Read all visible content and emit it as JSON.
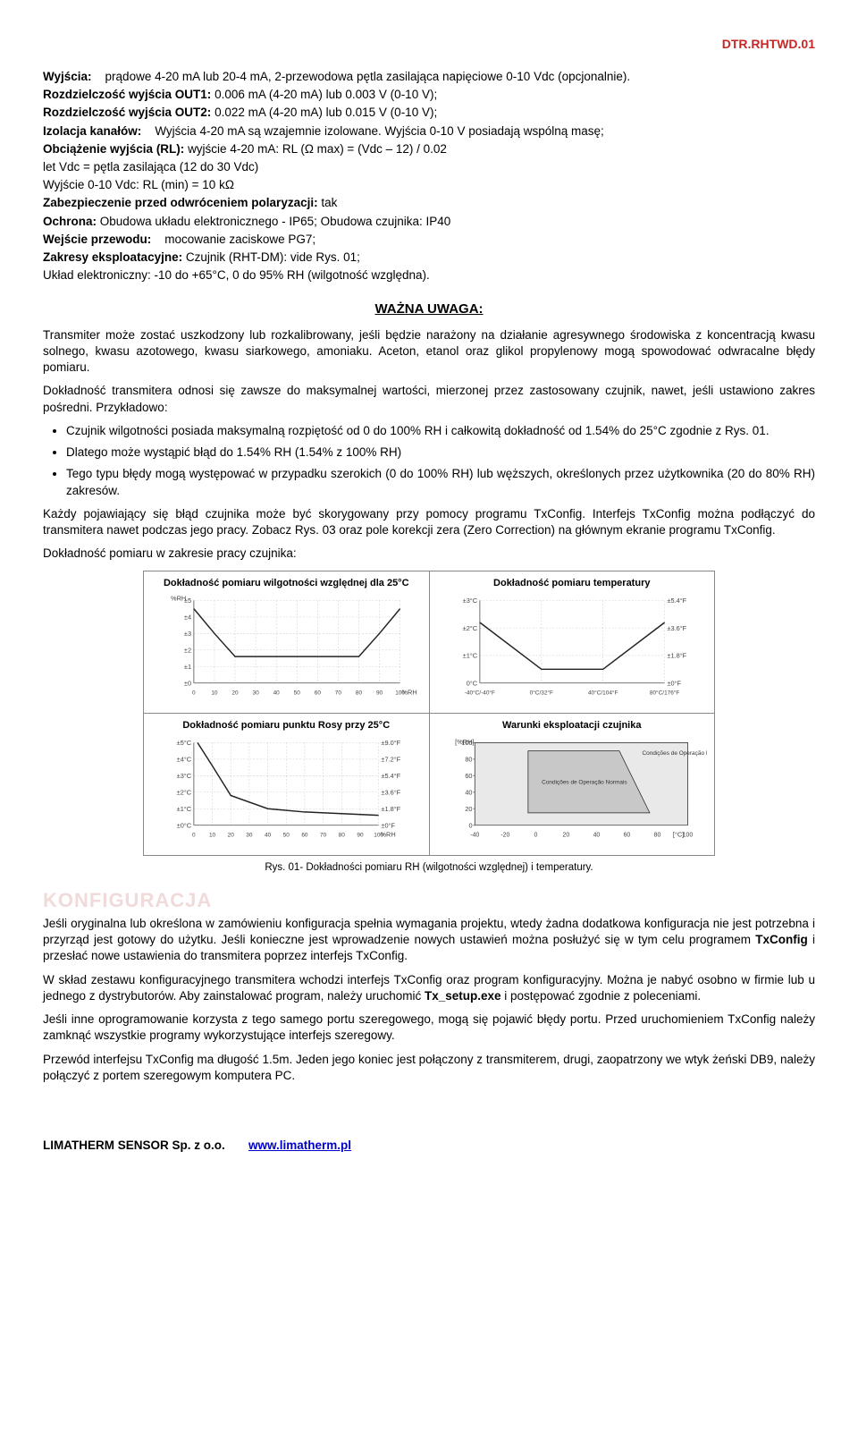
{
  "doc_code": "DTR.RHTWD.01",
  "specs": {
    "wyjscia_label": "Wyjścia:",
    "wyjscia_text": "prądowe 4-20 mA lub 20-4 mA, 2-przewodowa pętla zasilająca napięciowe 0-10 Vdc (opcjonalnie).",
    "rozdz_out1_label": "Rozdzielczość wyjścia OUT1:",
    "rozdz_out1_text": "0.006 mA (4-20 mA) lub 0.003 V (0-10 V);",
    "rozdz_out2_label": "Rozdzielczość wyjścia OUT2:",
    "rozdz_out2_text": "0.022 mA (4-20 mA) lub 0.015 V (0-10 V);",
    "izolacja_label": "Izolacja kanałów:",
    "izolacja_text": "Wyjścia 4-20 mA są wzajemnie izolowane. Wyjścia 0-10 V posiadają wspólną masę;",
    "obciazenie_label": "Obciążenie wyjścia (RL):",
    "obciazenie_text": "wyjście 4-20 mA:  RL (Ω max) = (Vdc – 12) / 0.02",
    "obc_line2": "let Vdc = pętla zasilająca (12 do 30 Vdc)",
    "obc_line3": "Wyjście 0-10 Vdc: RL (min) = 10 kΩ",
    "zabezp_label": "Zabezpieczenie przed odwróceniem polaryzacji:",
    "zabezp_text": "tak",
    "ochrona_label": "Ochrona:",
    "ochrona_text": "Obudowa układu elektronicznego -  IP65; Obudowa czujnika: IP40",
    "wejscie_label": "Wejście przewodu:",
    "wejscie_text": "mocowanie zaciskowe PG7;",
    "zakresy_label": "Zakresy eksploatacyjne:",
    "zakresy_text": "Czujnik (RHT-DM): vide Rys. 01;",
    "zakresy_line2": "Układ elektroniczny: -10 do +65°C, 0 do 95% RH (wilgotność względna)."
  },
  "important_note": {
    "title": "WAŻNA UWAGA:",
    "p1": "Transmiter może zostać uszkodzony lub rozkalibrowany, jeśli będzie narażony na działanie agresywnego środowiska z koncentracją kwasu solnego, kwasu azotowego, kwasu siarkowego, amoniaku. Aceton, etanol oraz glikol propylenowy mogą spowodować odwracalne błędy pomiaru.",
    "p2": "Dokładność transmitera odnosi się zawsze do maksymalnej wartości, mierzonej przez zastosowany czujnik, nawet, jeśli ustawiono zakres pośredni. Przykładowo:",
    "b1": "Czujnik wilgotności posiada maksymalną rozpiętość od 0 do 100% RH i całkowitą dokładność od 1.54% do 25°C zgodnie z Rys. 01.",
    "b2": "Dlatego może wystąpić błąd do 1.54% RH (1.54% z 100% RH)",
    "b3": "Tego typu błędy mogą występować w przypadku szerokich (0 do 100% RH) lub węższych, określonych przez użytkownika  (20 do 80% RH) zakresów.",
    "p3": "Każdy pojawiający się błąd czujnika może być skorygowany przy pomocy programu TxConfig. Interfejs TxConfig można podłączyć do transmitera nawet podczas jego pracy. Zobacz Rys. 03 oraz pole korekcji zera (Zero Correction) na głównym ekranie programu TxConfig.",
    "p4": "Dokładność pomiaru w zakresie pracy czujnika:"
  },
  "figures": {
    "t1": "Dokładność pomiaru wilgotności względnej dla 25°C",
    "t2": "Dokładność pomiaru temperatury",
    "t3": "Dokładność pomiaru punktu Rosy przy 25°C",
    "t4": "Warunki eksploatacji czujnika",
    "caption": "Rys. 01- Dokładności pomiaru RH (wilgotności względnej) i temperatury.",
    "chart1": {
      "ylabel": "%RH",
      "xlabel": "%RH",
      "yticks": [
        "±5",
        "±4",
        "±3",
        "±2",
        "±1",
        "±0"
      ],
      "xticks": [
        "0",
        "10",
        "20",
        "30",
        "40",
        "50",
        "60",
        "70",
        "80",
        "90",
        "100"
      ],
      "points": [
        [
          0,
          4.5
        ],
        [
          10,
          3
        ],
        [
          20,
          1.6
        ],
        [
          80,
          1.6
        ],
        [
          90,
          3
        ],
        [
          100,
          4.5
        ]
      ],
      "ylim": [
        0,
        5
      ],
      "xlim": [
        0,
        100
      ],
      "line_color": "#222",
      "grid_color": "#cfcfcf",
      "bg": "#ffffff"
    },
    "chart2": {
      "yticks_l": [
        "±3°C",
        "±2°C",
        "±1°C",
        "0°C"
      ],
      "yticks_r": [
        "±5.4°F",
        "±3.6°F",
        "±1.8°F",
        "±0°F"
      ],
      "xticks": [
        "-40°C/-40°F",
        "0°C/32°F",
        "40°C/104°F",
        "80°C/176°F"
      ],
      "points": [
        [
          -40,
          2.2
        ],
        [
          0,
          0.5
        ],
        [
          40,
          0.5
        ],
        [
          80,
          2.2
        ]
      ],
      "ylim": [
        0,
        3
      ],
      "xlim": [
        -40,
        80
      ],
      "line_color": "#222",
      "grid_color": "#cfcfcf",
      "bg": "#ffffff"
    },
    "chart3": {
      "yticks_l": [
        "±5°C",
        "±4°C",
        "±3°C",
        "±2°C",
        "±1°C",
        "±0°C"
      ],
      "yticks_r": [
        "±9.0°F",
        "±7.2°F",
        "±5.4°F",
        "±3.6°F",
        "±1.8°F",
        "±0°F"
      ],
      "xticks": [
        "0",
        "10",
        "20",
        "30",
        "40",
        "50",
        "60",
        "70",
        "80",
        "90",
        "100"
      ],
      "xlabel": "%RH",
      "points": [
        [
          2,
          5
        ],
        [
          10,
          3.6
        ],
        [
          20,
          1.8
        ],
        [
          40,
          1.0
        ],
        [
          60,
          0.8
        ],
        [
          80,
          0.7
        ],
        [
          100,
          0.6
        ]
      ],
      "ylim": [
        0,
        5
      ],
      "xlim": [
        0,
        100
      ],
      "line_color": "#222",
      "grid_color": "#cfcfcf",
      "bg": "#ffffff"
    },
    "chart4": {
      "ylabel": "[%RH]",
      "xlabel": "[°C]",
      "yticks": [
        "100",
        "80",
        "60",
        "40",
        "20",
        "0"
      ],
      "xticks": [
        "-40",
        "-20",
        "0",
        "20",
        "40",
        "60",
        "80",
        "100"
      ],
      "region_max_label": "Condições de Operação Máxima",
      "region_norm_label": "Condições de Operação Normais",
      "xlim": [
        -40,
        100
      ],
      "ylim": [
        0,
        100
      ],
      "max_region": [
        [
          -40,
          100
        ],
        [
          100,
          100
        ],
        [
          100,
          0
        ],
        [
          -40,
          0
        ]
      ],
      "norm_region": [
        [
          -5,
          90
        ],
        [
          55,
          90
        ],
        [
          75,
          15
        ],
        [
          -5,
          15
        ]
      ],
      "max_color": "#e9e9e9",
      "norm_color": "#c8c8c8",
      "line_color": "#222",
      "bg": "#ffffff"
    }
  },
  "config": {
    "heading": "KONFIGURACJA",
    "p1a": "Jeśli oryginalna lub określona w zamówieniu konfiguracja spełnia wymagania projektu, wtedy żadna dodatkowa konfiguracja nie jest potrzebna i przyrząd jest gotowy do użytku. Jeśli konieczne jest wprowadzenie nowych ustawień można posłużyć się w tym celu programem ",
    "p1b": "TxConfig",
    "p1c": " i przesłać nowe ustawienia do transmitera poprzez interfejs TxConfig.",
    "p2a": "W skład zestawu konfiguracyjnego transmitera wchodzi interfejs TxConfig oraz program konfiguracyjny. Można je nabyć osobno w firmie lub u jednego z dystrybutorów. Aby zainstalować program, należy uruchomić ",
    "p2b": "Tx_setup.exe",
    "p2c": " i postępować zgodnie z poleceniami.",
    "p3": "Jeśli inne oprogramowanie korzysta z tego samego portu szeregowego, mogą się pojawić błędy portu. Przed uruchomieniem TxConfig należy zamknąć wszystkie programy wykorzystujące interfejs szeregowy.",
    "p4": "Przewód interfejsu TxConfig ma długość 1.5m. Jeden jego koniec jest połączony z transmiterem, drugi, zaopatrzony we wtyk żeński DB9, należy połączyć z portem szeregowym komputera PC."
  },
  "footer": {
    "company": "LIMATHERM SENSOR Sp. z o.o.",
    "url_text": "www.limatherm.pl"
  }
}
